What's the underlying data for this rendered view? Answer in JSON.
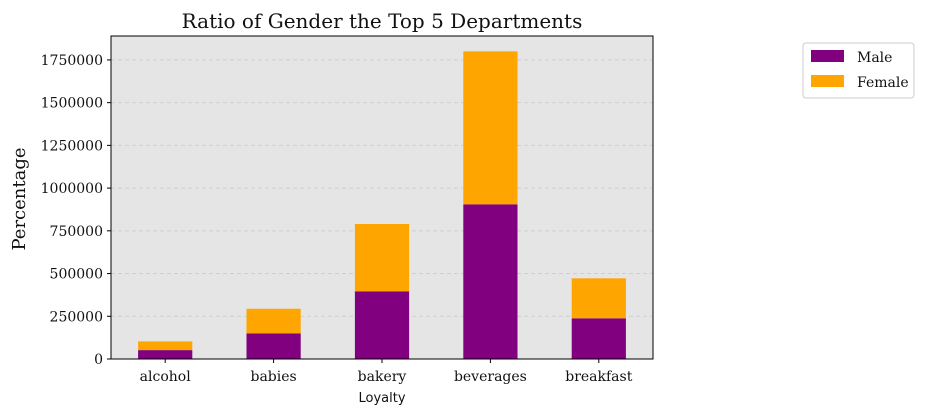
{
  "chart_data": {
    "type": "bar",
    "stacked": true,
    "title": "Ratio of Gender the Top 5 Departments",
    "xlabel": "Loyalty",
    "ylabel": "Percentage",
    "categories": [
      "alcohol",
      "babies",
      "bakery",
      "beverages",
      "breakfast"
    ],
    "series": [
      {
        "name": "Male",
        "color": "#800080",
        "values": [
          52000,
          150000,
          396000,
          905000,
          238000
        ]
      },
      {
        "name": "Female",
        "color": "#FFA500",
        "values": [
          51000,
          144000,
          394000,
          895000,
          234000
        ]
      }
    ],
    "ylim": [
      0,
      1890000
    ],
    "yticks": [
      0,
      250000,
      500000,
      750000,
      1000000,
      1250000,
      1500000,
      1750000
    ],
    "grid": true,
    "plot_background": "#E5E5E5",
    "legend_position": "outside-right"
  }
}
